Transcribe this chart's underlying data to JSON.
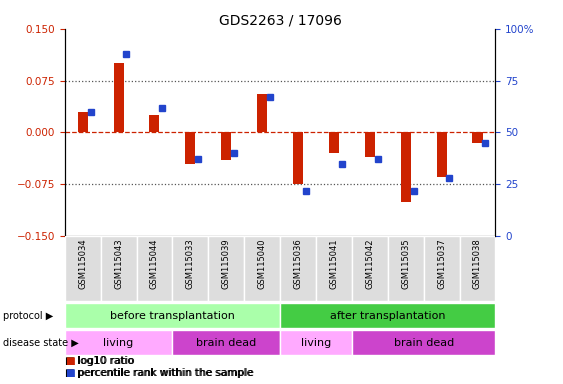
{
  "title": "GDS2263 / 17096",
  "samples": [
    "GSM115034",
    "GSM115043",
    "GSM115044",
    "GSM115033",
    "GSM115039",
    "GSM115040",
    "GSM115036",
    "GSM115041",
    "GSM115042",
    "GSM115035",
    "GSM115037",
    "GSM115038"
  ],
  "log10_ratio": [
    0.03,
    0.1,
    0.025,
    -0.045,
    -0.04,
    0.055,
    -0.075,
    -0.03,
    -0.035,
    -0.1,
    -0.065,
    -0.015
  ],
  "percentile_rank": [
    60,
    88,
    62,
    37,
    40,
    67,
    22,
    35,
    37,
    22,
    28,
    45
  ],
  "left_yaxis_ticks": [
    -0.15,
    -0.075,
    0,
    0.075,
    0.15
  ],
  "right_yaxis_ticks": [
    0,
    25,
    50,
    75,
    100
  ],
  "left_ylim": [
    -0.15,
    0.15
  ],
  "right_ylim": [
    0,
    100
  ],
  "bar_color": "#cc2200",
  "dot_color": "#2244cc",
  "zeroline_color": "#cc2200",
  "dotted_line_color": "#555555",
  "protocol_before_color": "#aaffaa",
  "protocol_after_color": "#44cc44",
  "disease_living_color": "#ffaaff",
  "disease_braindead_color": "#cc44cc",
  "protocol_before_label": "before transplantation",
  "protocol_after_label": "after transplantation",
  "protocol_label": "protocol",
  "disease_label": "disease state",
  "legend_red_label": "log10 ratio",
  "legend_blue_label": "percentile rank within the sample",
  "before_transplant_count": 6,
  "after_transplant_count": 6,
  "living_before_count": 3,
  "braindead_before_count": 3,
  "living_after_count": 2,
  "braindead_after_count": 4,
  "background_color": "#ffffff",
  "ticklabel_color_left": "#cc2200",
  "ticklabel_color_right": "#2244cc",
  "cell_bg_color": "#dddddd",
  "cell_border_color": "#ffffff"
}
